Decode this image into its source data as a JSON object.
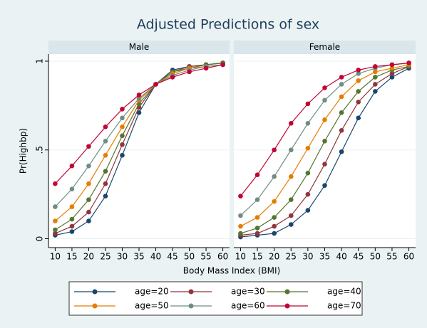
{
  "title": "Adjusted Predictions of sex",
  "xlabel": "Body Mass Index (BMI)",
  "ylabel": "Pr(Highbp)",
  "chart_data": [
    {
      "type": "line",
      "title": "Male",
      "x": [
        10,
        15,
        20,
        25,
        30,
        35,
        40,
        45,
        50,
        55,
        60
      ],
      "xlim": [
        8,
        62
      ],
      "xticks": [
        10,
        15,
        20,
        25,
        30,
        35,
        40,
        45,
        50,
        55,
        60
      ],
      "ylim": [
        -0.05,
        1.04
      ],
      "yticks": [
        0,
        {
          "value": 0.5,
          "label": ".5"
        },
        1
      ],
      "grid": true,
      "series": [
        {
          "name": "age=20",
          "color": "#1a476f",
          "values": [
            0.02,
            0.04,
            0.1,
            0.24,
            0.47,
            0.71,
            0.87,
            0.95,
            0.97,
            0.98,
            0.99
          ]
        },
        {
          "name": "age=30",
          "color": "#90353b",
          "values": [
            0.03,
            0.07,
            0.15,
            0.31,
            0.53,
            0.74,
            0.87,
            0.94,
            0.97,
            0.98,
            0.99
          ]
        },
        {
          "name": "age=40",
          "color": "#55752f",
          "values": [
            0.05,
            0.11,
            0.22,
            0.38,
            0.58,
            0.76,
            0.87,
            0.94,
            0.96,
            0.98,
            0.99
          ]
        },
        {
          "name": "age=50",
          "color": "#e37e00",
          "values": [
            0.1,
            0.18,
            0.31,
            0.47,
            0.63,
            0.78,
            0.87,
            0.93,
            0.96,
            0.97,
            0.98
          ]
        },
        {
          "name": "age=60",
          "color": "#6e8e84",
          "values": [
            0.18,
            0.28,
            0.41,
            0.55,
            0.68,
            0.79,
            0.87,
            0.92,
            0.95,
            0.97,
            0.98
          ]
        },
        {
          "name": "age=70",
          "color": "#c10534",
          "values": [
            0.31,
            0.41,
            0.52,
            0.63,
            0.73,
            0.81,
            0.87,
            0.91,
            0.94,
            0.96,
            0.98
          ]
        }
      ]
    },
    {
      "type": "line",
      "title": "Female",
      "x": [
        10,
        15,
        20,
        25,
        30,
        35,
        40,
        45,
        50,
        55,
        60
      ],
      "xlim": [
        8,
        62
      ],
      "xticks": [
        10,
        15,
        20,
        25,
        30,
        35,
        40,
        45,
        50,
        55,
        60
      ],
      "ylim": [
        -0.05,
        1.04
      ],
      "yticks": [
        0,
        0.5,
        1
      ],
      "grid": true,
      "series": [
        {
          "color": "#1a476f",
          "values": [
            0.01,
            0.02,
            0.03,
            0.08,
            0.16,
            0.3,
            0.49,
            0.68,
            0.83,
            0.91,
            0.96
          ]
        },
        {
          "color": "#90353b",
          "values": [
            0.02,
            0.03,
            0.07,
            0.13,
            0.25,
            0.42,
            0.61,
            0.77,
            0.87,
            0.93,
            0.97
          ]
        },
        {
          "color": "#55752f",
          "values": [
            0.03,
            0.06,
            0.12,
            0.22,
            0.37,
            0.55,
            0.71,
            0.83,
            0.91,
            0.95,
            0.97
          ]
        },
        {
          "color": "#e37e00",
          "values": [
            0.07,
            0.12,
            0.21,
            0.35,
            0.51,
            0.67,
            0.8,
            0.89,
            0.94,
            0.96,
            0.98
          ]
        },
        {
          "color": "#6e8e84",
          "values": [
            0.13,
            0.22,
            0.35,
            0.5,
            0.65,
            0.78,
            0.87,
            0.93,
            0.96,
            0.98,
            0.99
          ]
        },
        {
          "color": "#c10534",
          "values": [
            0.24,
            0.36,
            0.5,
            0.65,
            0.76,
            0.85,
            0.91,
            0.95,
            0.97,
            0.98,
            0.99
          ]
        }
      ]
    }
  ]
}
